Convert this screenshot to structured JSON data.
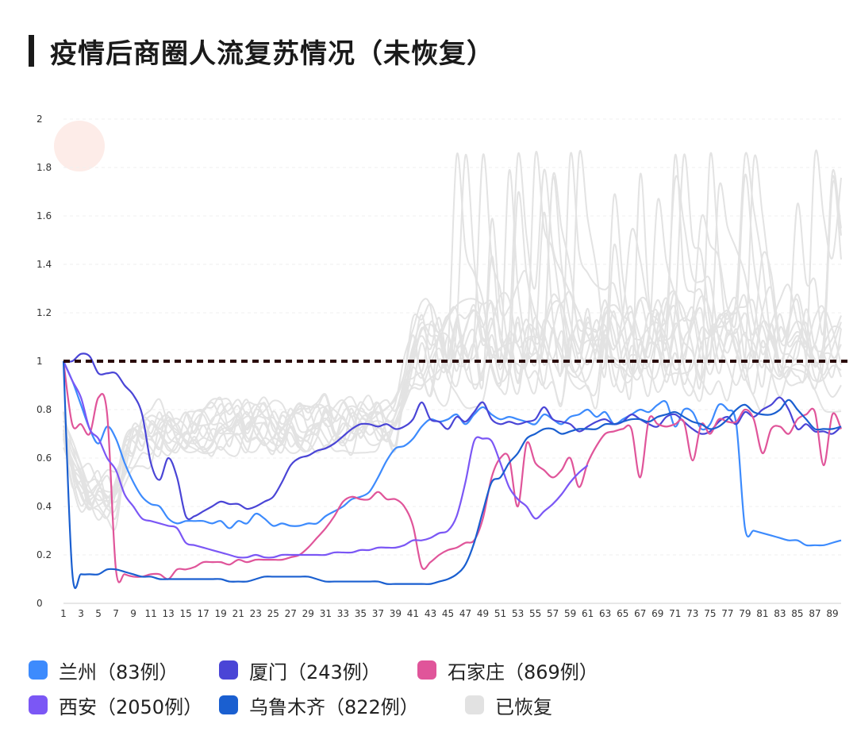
{
  "page": {
    "title": "疫情后商圈人流复苏情况（未恢复）"
  },
  "chart_data": {
    "type": "line",
    "title": "疫情后商圈人流复苏情况（未恢复）",
    "xlabel": "",
    "ylabel": "",
    "xlim": [
      1,
      90
    ],
    "ylim": [
      0,
      2
    ],
    "yticks": [
      0,
      0.2,
      0.4,
      0.6,
      0.8,
      1,
      1.2,
      1.4,
      1.6,
      1.8,
      2
    ],
    "ytick_labels": [
      "0",
      "0.2",
      "0.4",
      "0.6",
      "0.8",
      "1",
      "1.2",
      "1.4",
      "1.6",
      "1.8",
      "2"
    ],
    "xticks": [
      1,
      3,
      5,
      7,
      9,
      11,
      13,
      15,
      17,
      19,
      21,
      23,
      25,
      27,
      29,
      31,
      33,
      35,
      37,
      39,
      41,
      43,
      45,
      47,
      49,
      51,
      53,
      55,
      57,
      59,
      61,
      63,
      65,
      67,
      69,
      71,
      73,
      75,
      77,
      79,
      81,
      83,
      85,
      87,
      89
    ],
    "xtick_labels": [
      "1",
      "3",
      "5",
      "7",
      "9",
      "11",
      "13",
      "15",
      "17",
      "19",
      "21",
      "23",
      "25",
      "27",
      "29",
      "31",
      "33",
      "35",
      "37",
      "39",
      "41",
      "43",
      "45",
      "47",
      "49",
      "51",
      "53",
      "55",
      "57",
      "59",
      "61",
      "63",
      "65",
      "67",
      "69",
      "71",
      "73",
      "75",
      "77",
      "79",
      "81",
      "83",
      "85",
      "87",
      "89"
    ],
    "grid": true,
    "legend_position": "bottom",
    "reference_line": 1,
    "series": [
      {
        "name": "兰州（83例）",
        "color": "#3d8bfd",
        "x": [
          1,
          2,
          3,
          4,
          5,
          6,
          7,
          8,
          9,
          10,
          11,
          12,
          13,
          14,
          15,
          16,
          17,
          18,
          19,
          20,
          21,
          22,
          23,
          24,
          25,
          26,
          27,
          28,
          29,
          30,
          31,
          32,
          33,
          34,
          35,
          36,
          37,
          38,
          39,
          40,
          41,
          42,
          43,
          44,
          45,
          46,
          47,
          48,
          49,
          50,
          51,
          52,
          53,
          54,
          55,
          56,
          57,
          58,
          59,
          60,
          61,
          62,
          63,
          64,
          65,
          66,
          67,
          68,
          69,
          70,
          71,
          72,
          73,
          74,
          75,
          76,
          77,
          78,
          79,
          80,
          81,
          82,
          83,
          84,
          85,
          86,
          87,
          88,
          89,
          90
        ],
        "y": [
          1.0,
          0.92,
          0.82,
          0.72,
          0.66,
          0.73,
          0.68,
          0.58,
          0.5,
          0.44,
          0.41,
          0.4,
          0.35,
          0.33,
          0.34,
          0.34,
          0.34,
          0.33,
          0.34,
          0.31,
          0.34,
          0.33,
          0.37,
          0.35,
          0.32,
          0.33,
          0.32,
          0.32,
          0.33,
          0.33,
          0.36,
          0.38,
          0.4,
          0.43,
          0.44,
          0.46,
          0.52,
          0.59,
          0.64,
          0.65,
          0.68,
          0.73,
          0.76,
          0.75,
          0.76,
          0.78,
          0.74,
          0.78,
          0.81,
          0.78,
          0.76,
          0.77,
          0.76,
          0.75,
          0.74,
          0.78,
          0.76,
          0.74,
          0.77,
          0.78,
          0.8,
          0.77,
          0.79,
          0.74,
          0.76,
          0.78,
          0.8,
          0.79,
          0.82,
          0.83,
          0.73,
          0.8,
          0.79,
          0.72,
          0.74,
          0.82,
          0.8,
          0.74,
          0.31,
          0.3,
          0.29,
          0.28,
          0.27,
          0.26,
          0.26,
          0.24,
          0.24,
          0.24,
          0.25,
          0.26
        ]
      },
      {
        "name": "厦门（243例）",
        "color": "#4a45d6",
        "x": [
          1,
          2,
          3,
          4,
          5,
          6,
          7,
          8,
          9,
          10,
          11,
          12,
          13,
          14,
          15,
          16,
          17,
          18,
          19,
          20,
          21,
          22,
          23,
          24,
          25,
          26,
          27,
          28,
          29,
          30,
          31,
          32,
          33,
          34,
          35,
          36,
          37,
          38,
          39,
          40,
          41,
          42,
          43,
          44,
          45,
          46,
          47,
          48,
          49,
          50,
          51,
          52,
          53,
          54,
          55,
          56,
          57,
          58,
          59,
          60,
          61,
          62,
          63,
          64,
          65,
          66,
          67,
          68,
          69,
          70,
          71,
          72,
          73,
          74,
          75,
          76,
          77,
          78,
          79,
          80,
          81,
          82,
          83,
          84,
          85,
          86,
          87,
          88,
          89,
          90
        ],
        "y": [
          1.0,
          1.0,
          1.03,
          1.02,
          0.95,
          0.95,
          0.95,
          0.9,
          0.86,
          0.78,
          0.58,
          0.51,
          0.6,
          0.52,
          0.36,
          0.36,
          0.38,
          0.4,
          0.42,
          0.41,
          0.41,
          0.39,
          0.4,
          0.42,
          0.44,
          0.5,
          0.57,
          0.6,
          0.61,
          0.63,
          0.64,
          0.66,
          0.69,
          0.72,
          0.74,
          0.74,
          0.73,
          0.74,
          0.72,
          0.73,
          0.76,
          0.83,
          0.76,
          0.75,
          0.72,
          0.77,
          0.75,
          0.79,
          0.83,
          0.76,
          0.74,
          0.75,
          0.74,
          0.75,
          0.76,
          0.81,
          0.76,
          0.75,
          0.74,
          0.71,
          0.73,
          0.75,
          0.76,
          0.74,
          0.75,
          0.78,
          0.76,
          0.74,
          0.73,
          0.77,
          0.78,
          0.75,
          0.72,
          0.7,
          0.71,
          0.75,
          0.77,
          0.74,
          0.79,
          0.77,
          0.8,
          0.82,
          0.85,
          0.8,
          0.72,
          0.74,
          0.71,
          0.71,
          0.7,
          0.73
        ]
      },
      {
        "name": "石家庄（869例）",
        "color": "#e0559a",
        "x": [
          1,
          2,
          3,
          4,
          5,
          6,
          7,
          8,
          9,
          10,
          11,
          12,
          13,
          14,
          15,
          16,
          17,
          18,
          19,
          20,
          21,
          22,
          23,
          24,
          25,
          26,
          27,
          28,
          29,
          30,
          31,
          32,
          33,
          34,
          35,
          36,
          37,
          38,
          39,
          40,
          41,
          42,
          43,
          44,
          45,
          46,
          47,
          48,
          49,
          50,
          51,
          52,
          53,
          54,
          55,
          56,
          57,
          58,
          59,
          60,
          61,
          62,
          63,
          64,
          65,
          66,
          67,
          68,
          69,
          70,
          71,
          72,
          73,
          74,
          75,
          76,
          77,
          78,
          79,
          80,
          81,
          82,
          83,
          84,
          85,
          86,
          87,
          88,
          89,
          90
        ],
        "y": [
          1.0,
          0.74,
          0.74,
          0.7,
          0.85,
          0.78,
          0.14,
          0.12,
          0.11,
          0.11,
          0.12,
          0.12,
          0.1,
          0.14,
          0.14,
          0.15,
          0.17,
          0.17,
          0.17,
          0.16,
          0.18,
          0.17,
          0.18,
          0.18,
          0.18,
          0.18,
          0.19,
          0.2,
          0.23,
          0.27,
          0.31,
          0.36,
          0.42,
          0.44,
          0.43,
          0.43,
          0.46,
          0.43,
          0.43,
          0.4,
          0.32,
          0.15,
          0.17,
          0.2,
          0.22,
          0.23,
          0.25,
          0.26,
          0.35,
          0.52,
          0.6,
          0.6,
          0.4,
          0.66,
          0.58,
          0.55,
          0.52,
          0.55,
          0.6,
          0.48,
          0.58,
          0.65,
          0.7,
          0.71,
          0.72,
          0.72,
          0.52,
          0.76,
          0.74,
          0.73,
          0.74,
          0.75,
          0.59,
          0.74,
          0.7,
          0.76,
          0.75,
          0.75,
          0.8,
          0.76,
          0.62,
          0.72,
          0.73,
          0.7,
          0.76,
          0.78,
          0.79,
          0.57,
          0.78,
          0.72
        ]
      },
      {
        "name": "西安（2050例）",
        "color": "#7b57f5",
        "x": [
          1,
          2,
          3,
          4,
          5,
          6,
          7,
          8,
          9,
          10,
          11,
          12,
          13,
          14,
          15,
          16,
          17,
          18,
          19,
          20,
          21,
          22,
          23,
          24,
          25,
          26,
          27,
          28,
          29,
          30,
          31,
          32,
          33,
          34,
          35,
          36,
          37,
          38,
          39,
          40,
          41,
          42,
          43,
          44,
          45,
          46,
          47,
          48,
          49,
          50,
          51,
          52,
          53,
          54,
          55,
          56,
          57,
          58,
          59,
          60,
          61
        ],
        "y": [
          1.0,
          0.92,
          0.85,
          0.72,
          0.68,
          0.6,
          0.55,
          0.45,
          0.4,
          0.35,
          0.34,
          0.33,
          0.32,
          0.31,
          0.25,
          0.24,
          0.23,
          0.22,
          0.21,
          0.2,
          0.19,
          0.19,
          0.2,
          0.19,
          0.19,
          0.2,
          0.2,
          0.2,
          0.2,
          0.2,
          0.2,
          0.21,
          0.21,
          0.21,
          0.22,
          0.22,
          0.23,
          0.23,
          0.23,
          0.24,
          0.26,
          0.26,
          0.27,
          0.29,
          0.3,
          0.36,
          0.5,
          0.67,
          0.68,
          0.67,
          0.58,
          0.48,
          0.43,
          0.4,
          0.35,
          0.38,
          0.41,
          0.45,
          0.5,
          0.54,
          0.57
        ]
      },
      {
        "name": "乌鲁木齐（822例）",
        "color": "#1a5fd0",
        "x": [
          1,
          2,
          3,
          4,
          5,
          6,
          7,
          8,
          9,
          10,
          11,
          12,
          13,
          14,
          15,
          16,
          17,
          18,
          19,
          20,
          21,
          22,
          23,
          24,
          25,
          26,
          27,
          28,
          29,
          30,
          31,
          32,
          33,
          34,
          35,
          36,
          37,
          38,
          39,
          40,
          41,
          42,
          43,
          44,
          45,
          46,
          47,
          48,
          49,
          50,
          51,
          52,
          53,
          54,
          55,
          56,
          57,
          58,
          59,
          60,
          61,
          62,
          63,
          64,
          65,
          66,
          67,
          68,
          69,
          70,
          71,
          72,
          73,
          74,
          75,
          76,
          77,
          78,
          79,
          80,
          81,
          82,
          83,
          84,
          85,
          86,
          87,
          88,
          89,
          90
        ],
        "y": [
          1.0,
          0.13,
          0.12,
          0.12,
          0.12,
          0.14,
          0.14,
          0.13,
          0.12,
          0.11,
          0.11,
          0.1,
          0.1,
          0.1,
          0.1,
          0.1,
          0.1,
          0.1,
          0.1,
          0.09,
          0.09,
          0.09,
          0.1,
          0.11,
          0.11,
          0.11,
          0.11,
          0.11,
          0.11,
          0.1,
          0.09,
          0.09,
          0.09,
          0.09,
          0.09,
          0.09,
          0.09,
          0.08,
          0.08,
          0.08,
          0.08,
          0.08,
          0.08,
          0.09,
          0.1,
          0.12,
          0.16,
          0.25,
          0.38,
          0.5,
          0.52,
          0.58,
          0.62,
          0.68,
          0.7,
          0.72,
          0.72,
          0.7,
          0.71,
          0.72,
          0.72,
          0.72,
          0.74,
          0.74,
          0.75,
          0.76,
          0.76,
          0.75,
          0.77,
          0.78,
          0.79,
          0.77,
          0.75,
          0.74,
          0.72,
          0.73,
          0.76,
          0.8,
          0.82,
          0.79,
          0.78,
          0.78,
          0.8,
          0.84,
          0.8,
          0.76,
          0.72,
          0.72,
          0.72,
          0.73
        ]
      },
      {
        "name": "已恢复",
        "color": "#e2e2e2",
        "values_note_series": "recovered",
        "x": [],
        "y": []
      }
    ]
  },
  "legend": {
    "items": [
      {
        "label": "兰州（83例）",
        "color": "#3d8bfd"
      },
      {
        "label": "厦门（243例）",
        "color": "#4a45d6"
      },
      {
        "label": "石家庄（869例）",
        "color": "#e0559a"
      },
      {
        "label": "西安（2050例）",
        "color": "#7b57f5"
      },
      {
        "label": "乌鲁木齐（822例）",
        "color": "#1a5fd0"
      },
      {
        "label": "已恢复",
        "color": "#e2e2e2"
      }
    ]
  }
}
